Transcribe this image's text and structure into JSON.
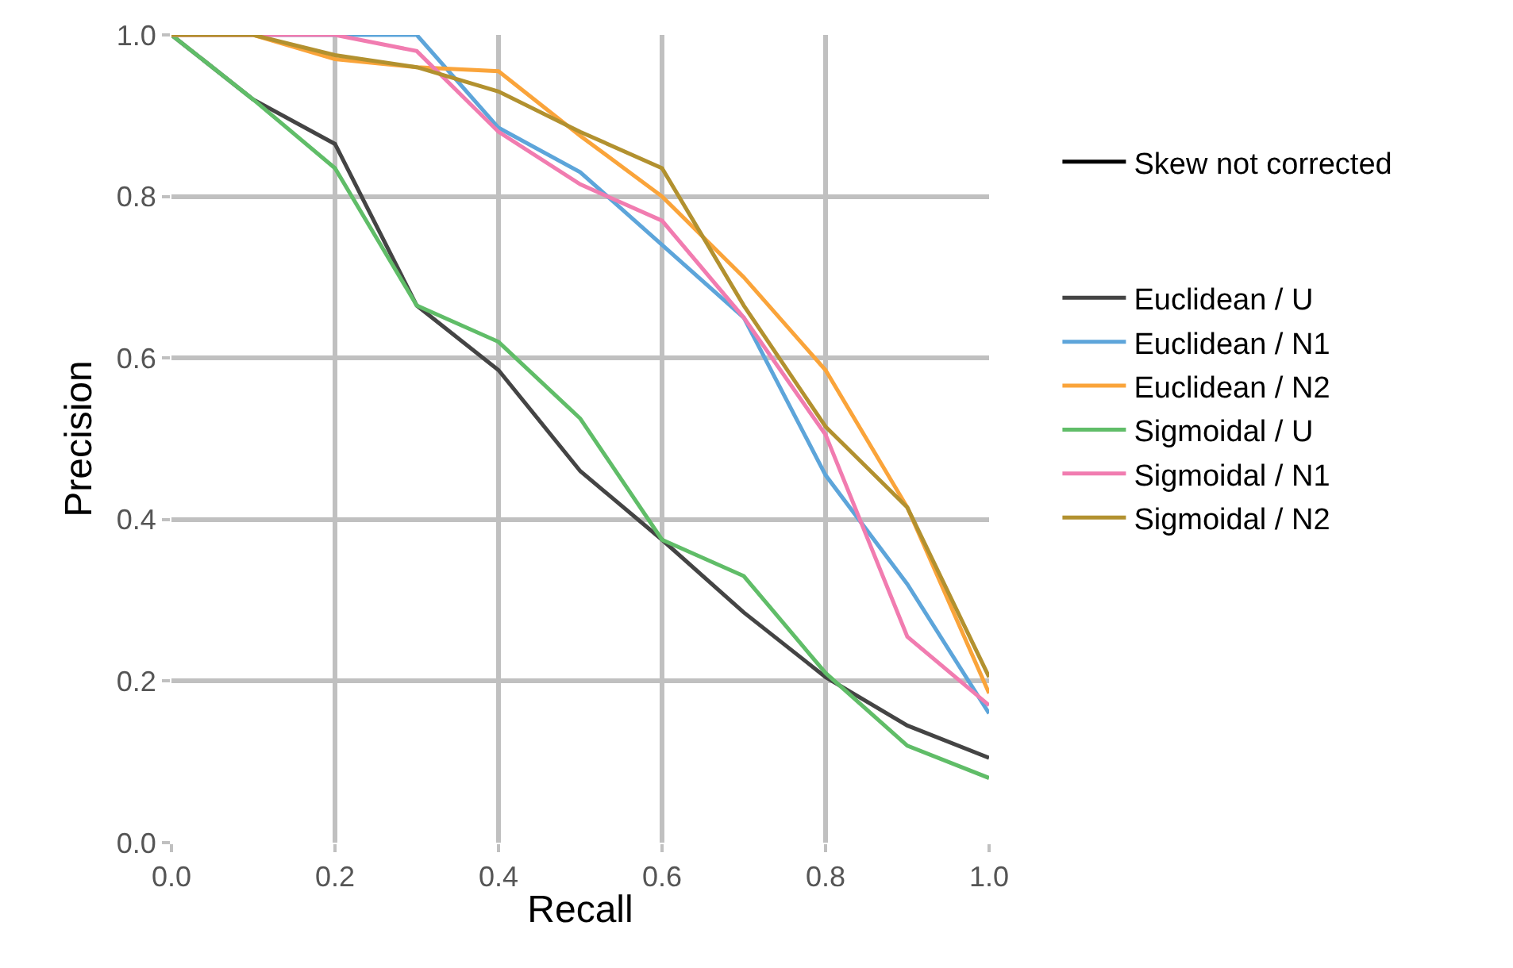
{
  "chart_data": {
    "type": "line",
    "xlabel": "Recall",
    "ylabel": "Precision",
    "x": [
      0,
      0.1,
      0.2,
      0.3,
      0.4,
      0.5,
      0.6,
      0.7,
      0.8,
      0.9,
      1.0
    ],
    "xlim": [
      0,
      1
    ],
    "xticks": [
      {
        "value": 0,
        "label": "0.0"
      },
      0.2,
      0.4,
      0.6,
      0.8,
      {
        "value": 1,
        "label": "1.0"
      }
    ],
    "ylim": [
      0,
      1
    ],
    "yticks": [
      {
        "value": 0,
        "label": "0.0"
      },
      0.2,
      0.4,
      0.6,
      0.8,
      {
        "value": 1,
        "label": "1.0"
      }
    ],
    "grid": true,
    "legend": "right",
    "line_style": "solid",
    "marker": "none",
    "series": [
      {
        "name": "Skew not corrected",
        "color": "#000000",
        "values": [
          null,
          null,
          null,
          null,
          null,
          null,
          null,
          null,
          null,
          null,
          null
        ]
      },
      {
        "name": "Euclidean / U",
        "color": "#444444",
        "values": [
          1.0,
          0.92,
          0.865,
          0.665,
          0.585,
          0.46,
          0.375,
          0.285,
          0.205,
          0.145,
          0.105
        ]
      },
      {
        "name": "Euclidean / N1",
        "color": "#5da5da",
        "values": [
          1.0,
          1.0,
          1.0,
          1.0,
          0.885,
          0.83,
          0.74,
          0.65,
          0.455,
          0.32,
          0.16
        ]
      },
      {
        "name": "Euclidean / N2",
        "color": "#faa43a",
        "values": [
          1.0,
          1.0,
          0.97,
          0.96,
          0.955,
          0.875,
          0.8,
          0.7,
          0.585,
          0.415,
          0.185
        ]
      },
      {
        "name": "Sigmoidal / U",
        "color": "#60bd68",
        "values": [
          1.0,
          0.92,
          0.835,
          0.665,
          0.62,
          0.525,
          0.375,
          0.33,
          0.21,
          0.12,
          0.08
        ]
      },
      {
        "name": "Sigmoidal / N1",
        "color": "#f17cb0",
        "values": [
          1.0,
          1.0,
          1.0,
          0.98,
          0.88,
          0.815,
          0.77,
          0.65,
          0.505,
          0.255,
          0.17
        ]
      },
      {
        "name": "Sigmoidal / N2",
        "color": "#b2912f",
        "values": [
          1.0,
          1.0,
          0.975,
          0.96,
          0.93,
          0.88,
          0.835,
          0.665,
          0.515,
          0.415,
          0.205
        ]
      }
    ]
  }
}
